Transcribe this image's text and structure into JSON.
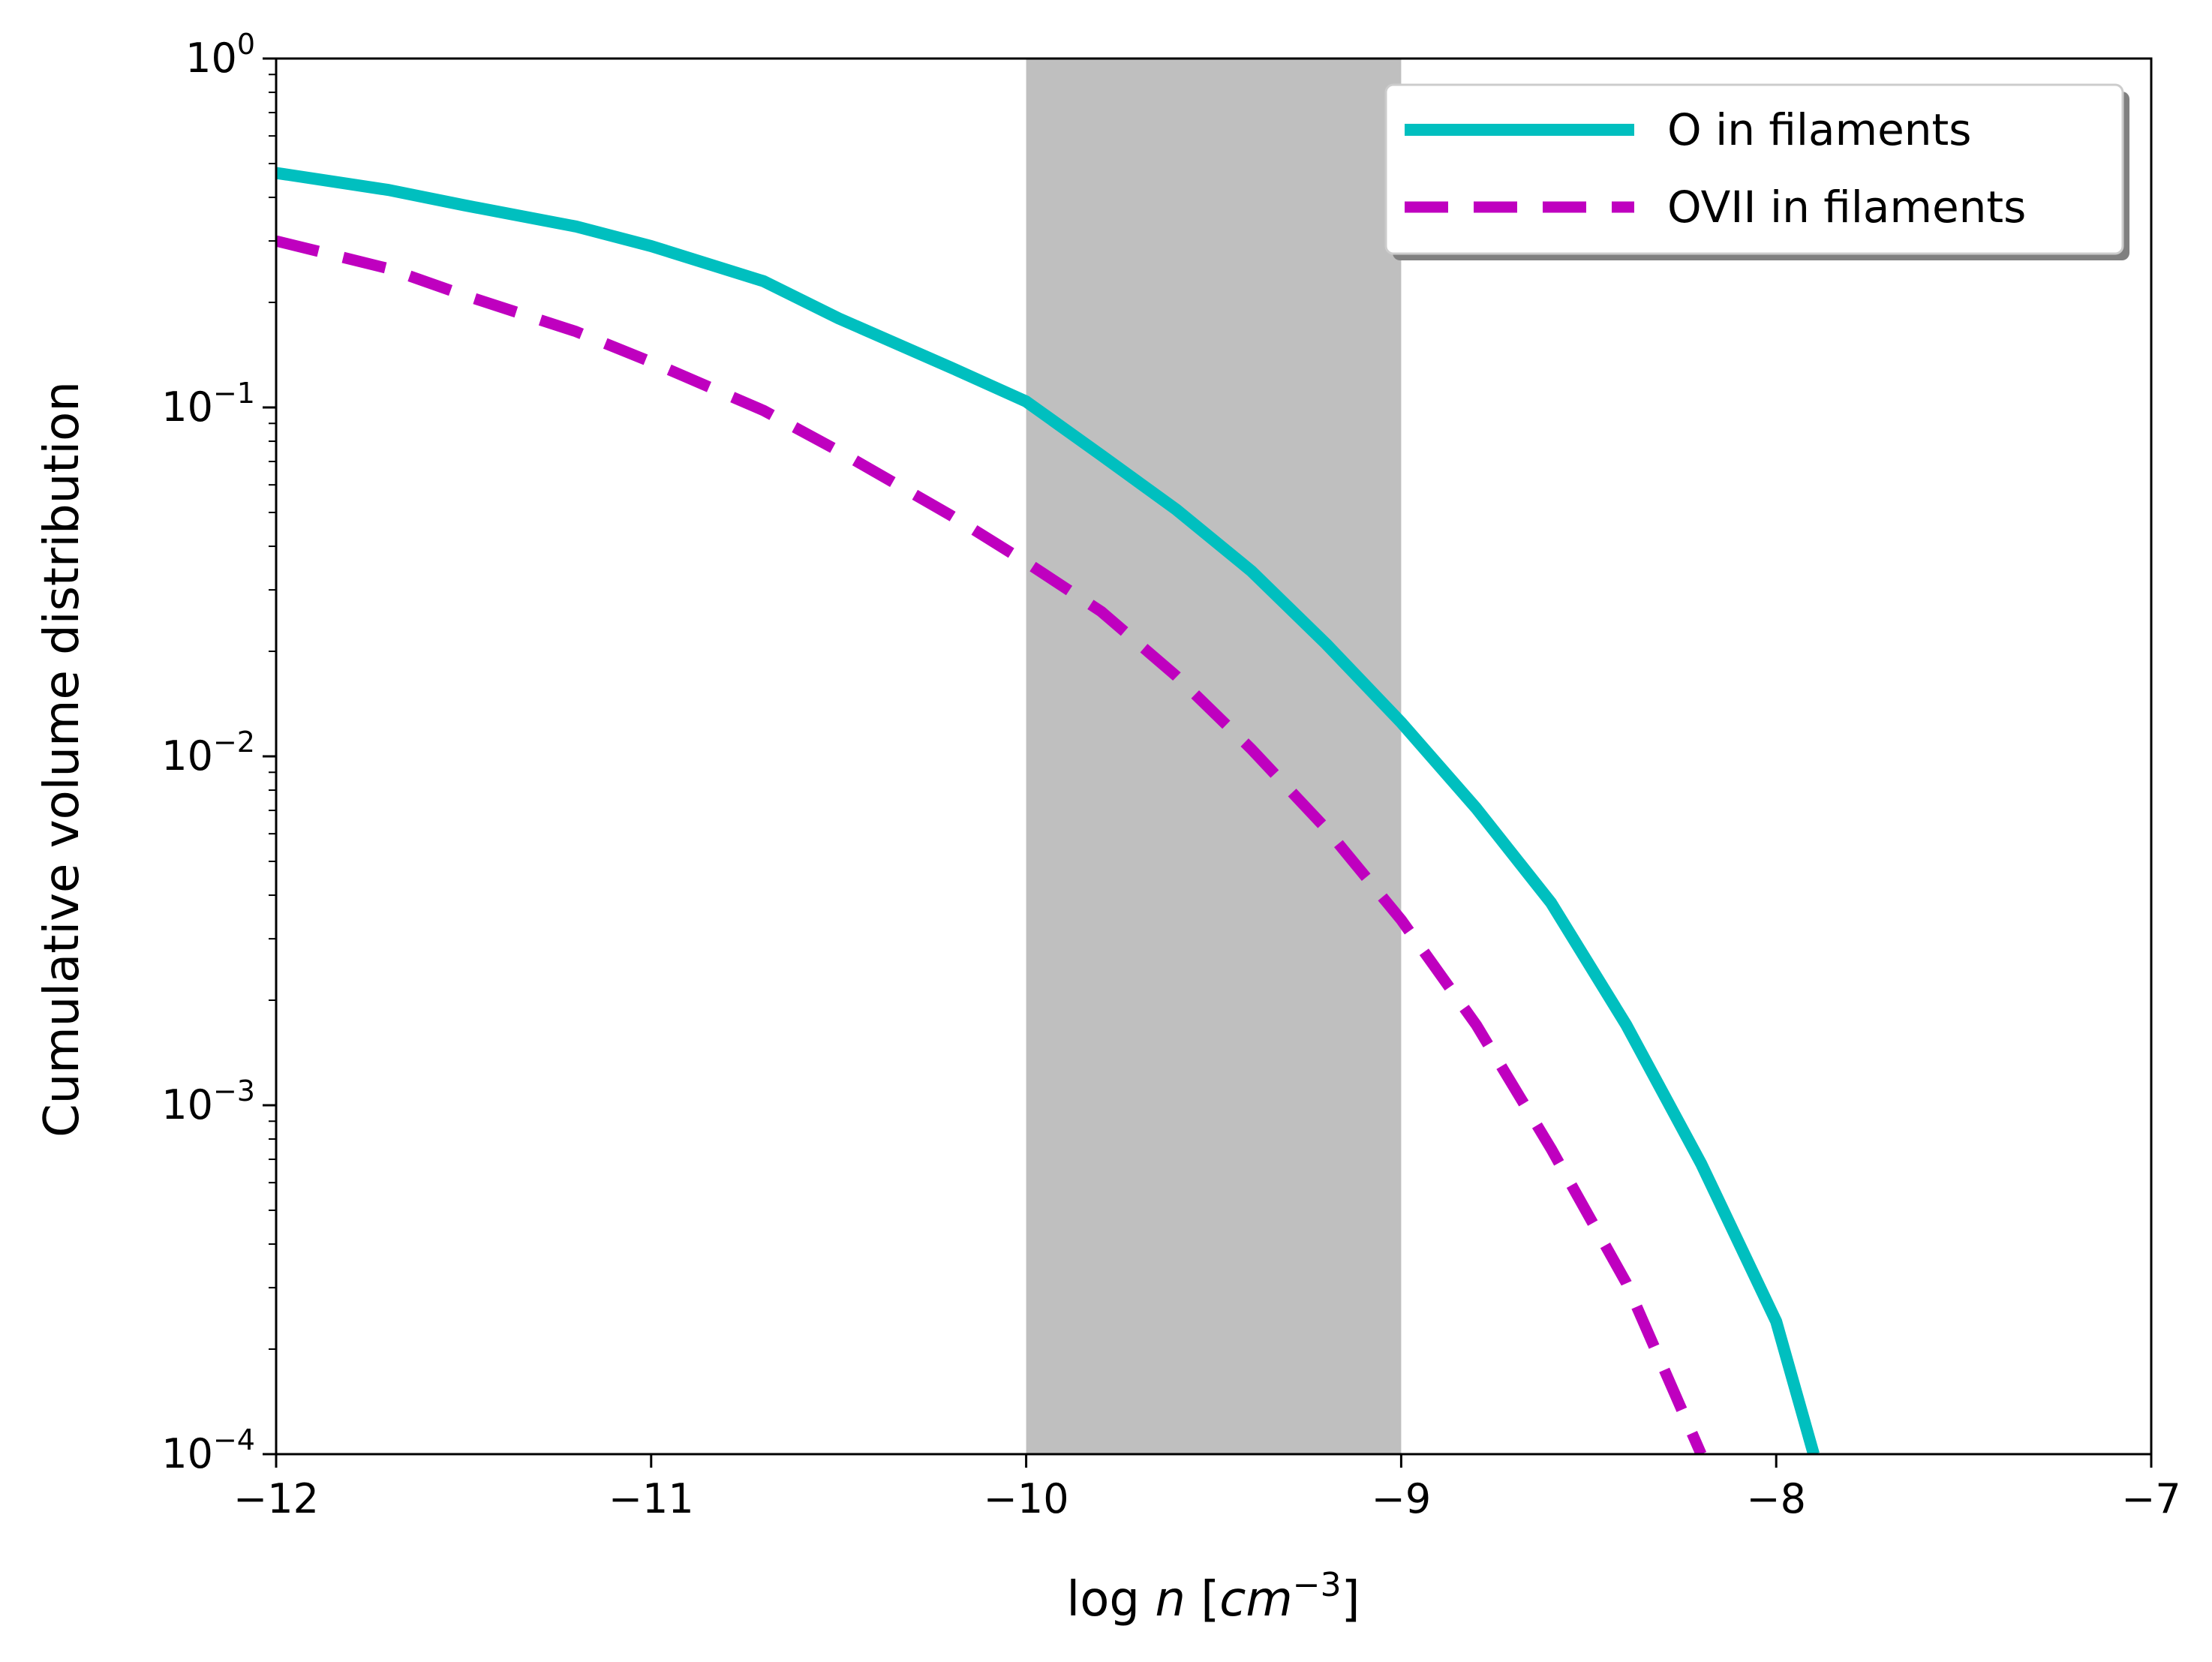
{
  "chart_data": {
    "type": "line",
    "title": "",
    "xlabel": {
      "prefix": "log ",
      "var": "n",
      "open": " [",
      "unit": "cm",
      "exp": "−3",
      "close": "]"
    },
    "ylabel": "Cumulative volume distribution",
    "xlim": [
      -12,
      -7
    ],
    "ylim": [
      0.0001,
      1
    ],
    "yscale": "log",
    "grid": false,
    "legend_position": "top-right",
    "x_ticks": [
      {
        "value": -12,
        "label": "−12"
      },
      {
        "value": -11,
        "label": "−11"
      },
      {
        "value": -10,
        "label": "−10"
      },
      {
        "value": -9,
        "label": "−9"
      },
      {
        "value": -8,
        "label": "−8"
      },
      {
        "value": -7,
        "label": "−7"
      }
    ],
    "y_ticks": [
      {
        "value": 1,
        "base": "10",
        "exp": "0"
      },
      {
        "value": 0.1,
        "base": "10",
        "exp": "−1"
      },
      {
        "value": 0.01,
        "base": "10",
        "exp": "−2"
      },
      {
        "value": 0.001,
        "base": "10",
        "exp": "−3"
      },
      {
        "value": 0.0001,
        "base": "10",
        "exp": "−4"
      }
    ],
    "shaded_region": {
      "x_start": -10,
      "x_end": -9,
      "color": "#bfbfbf"
    },
    "series": [
      {
        "name": "O in filaments",
        "color": "#00bfbf",
        "style": "solid",
        "points": [
          [
            -12,
            0.47
          ],
          [
            -11.7,
            0.42
          ],
          [
            -11.5,
            0.38
          ],
          [
            -11.2,
            0.33
          ],
          [
            -11.0,
            0.29
          ],
          [
            -10.7,
            0.23
          ],
          [
            -10.5,
            0.18
          ],
          [
            -10.2,
            0.13
          ],
          [
            -10.0,
            0.104
          ],
          [
            -9.8,
            0.073
          ],
          [
            -9.6,
            0.051
          ],
          [
            -9.4,
            0.034
          ],
          [
            -9.2,
            0.021
          ],
          [
            -9.0,
            0.0125
          ],
          [
            -8.8,
            0.0071
          ],
          [
            -8.6,
            0.0038
          ],
          [
            -8.4,
            0.0017
          ],
          [
            -8.2,
            0.00068
          ],
          [
            -8.0,
            0.00024
          ],
          [
            -7.9,
            0.0001
          ]
        ]
      },
      {
        "name": "OVII in filaments",
        "color": "#bf00bf",
        "style": "dashed",
        "points": [
          [
            -12,
            0.3
          ],
          [
            -11.7,
            0.25
          ],
          [
            -11.5,
            0.21
          ],
          [
            -11.2,
            0.165
          ],
          [
            -11.0,
            0.135
          ],
          [
            -10.7,
            0.098
          ],
          [
            -10.5,
            0.075
          ],
          [
            -10.2,
            0.049
          ],
          [
            -10.0,
            0.036
          ],
          [
            -9.8,
            0.026
          ],
          [
            -9.6,
            0.017
          ],
          [
            -9.4,
            0.0105
          ],
          [
            -9.2,
            0.0062
          ],
          [
            -9.0,
            0.0034
          ],
          [
            -8.8,
            0.0017
          ],
          [
            -8.6,
            0.00075
          ],
          [
            -8.4,
            0.00031
          ],
          [
            -8.2,
            0.0001
          ]
        ]
      }
    ]
  }
}
